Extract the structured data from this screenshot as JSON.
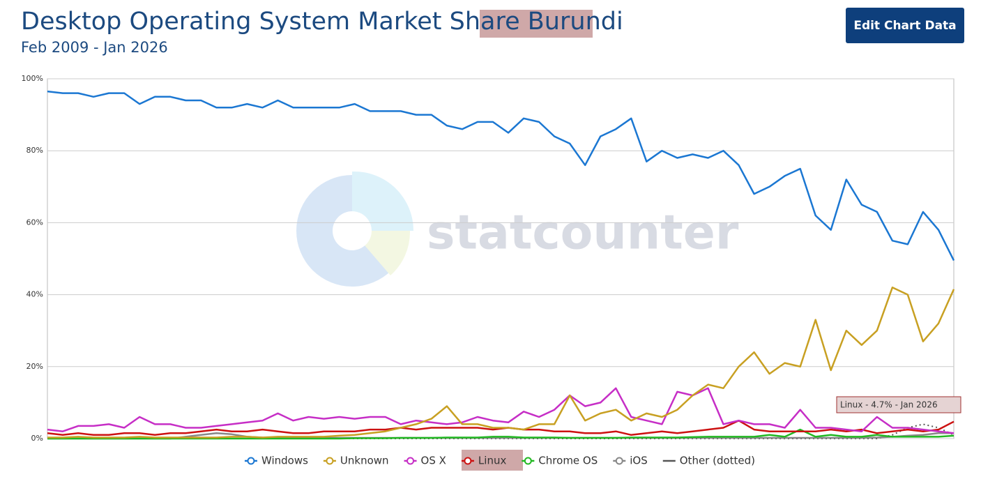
{
  "chart_data": {
    "type": "line",
    "title": "Desktop Operating System Market Share",
    "title_highlight": "Burundi",
    "subtitle": "Feb 2009 - Jan 2026",
    "button": "Edit Chart Data",
    "watermark": "statcounter",
    "tooltip": "Linux - 4.7% - Jan 2026",
    "grid": true,
    "legend": "bottom",
    "ylim": [
      0,
      100
    ],
    "yticks": [
      {
        "value": 0,
        "label": "0%"
      },
      {
        "value": 20,
        "label": "20%"
      },
      {
        "value": 40,
        "label": "40%"
      },
      {
        "value": 60,
        "label": "60%"
      },
      {
        "value": 80,
        "label": "80%"
      },
      {
        "value": 100,
        "label": "100%"
      }
    ],
    "categories": [
      null,
      null,
      null,
      null,
      null,
      null,
      null,
      null,
      null,
      null,
      null,
      null,
      null,
      null,
      null,
      null,
      null,
      null,
      null,
      null,
      null,
      null,
      null,
      null,
      null,
      null,
      null,
      null,
      null,
      null,
      null,
      null,
      null,
      null,
      null,
      null,
      null,
      null,
      null,
      null,
      null,
      null,
      null,
      null,
      null,
      null,
      null,
      null,
      null,
      null,
      null,
      null,
      null,
      null,
      null,
      null,
      null,
      null,
      null,
      null
    ],
    "series": [
      {
        "name": "Windows",
        "color": "#1b77d2",
        "dash": "solid",
        "values": [
          96.5,
          96,
          96,
          95,
          96,
          96,
          93,
          95,
          95,
          94,
          94,
          92,
          92,
          93,
          92,
          94,
          92,
          92,
          92,
          92,
          93,
          91,
          91,
          91,
          90,
          90,
          87,
          86,
          88,
          88,
          85,
          89,
          88,
          84,
          82,
          76,
          84,
          86,
          89,
          77,
          80,
          78,
          79,
          78,
          80,
          76,
          68,
          70,
          73,
          75,
          62,
          58,
          72,
          65,
          63,
          55,
          54,
          63,
          58,
          49.5
        ]
      },
      {
        "name": "Unknown",
        "color": "#c8a022",
        "dash": "solid",
        "values": [
          0.3,
          0.3,
          0.5,
          0.3,
          0.3,
          0.3,
          0.5,
          0.3,
          0.3,
          0.3,
          0.3,
          0.3,
          0.5,
          0.5,
          0.3,
          0.5,
          0.5,
          0.5,
          0.5,
          0.8,
          1,
          1.5,
          2,
          3,
          4,
          5.5,
          9,
          4,
          4,
          3,
          3,
          2.5,
          4,
          4,
          12,
          5,
          7,
          8,
          5,
          7,
          6,
          8,
          12,
          15,
          14,
          20,
          24,
          18,
          21,
          20,
          33,
          19,
          30,
          26,
          30,
          42,
          40,
          27,
          32,
          41.5
        ]
      },
      {
        "name": "OS X",
        "color": "#c62ec6",
        "dash": "solid",
        "values": [
          2.5,
          2,
          3.5,
          3.5,
          4,
          3,
          6,
          4,
          4,
          3,
          3,
          3.5,
          4,
          4.5,
          5,
          7,
          5,
          6,
          5.5,
          6,
          5.5,
          6,
          6,
          4,
          5,
          4.5,
          4,
          4.5,
          6,
          5,
          4.5,
          7.5,
          6,
          8,
          12,
          9,
          10,
          14,
          6,
          5,
          4,
          13,
          12,
          14,
          4,
          5,
          4,
          4,
          3,
          8,
          3,
          3,
          2.5,
          2,
          6,
          3,
          3,
          2.5,
          2,
          1.5
        ]
      },
      {
        "name": "Linux",
        "color": "#cc1111",
        "dash": "solid",
        "values": [
          1.5,
          1,
          1.5,
          1,
          1,
          1.5,
          1.5,
          1,
          1.5,
          1.5,
          2,
          2.5,
          2,
          2,
          2.5,
          2,
          1.5,
          1.5,
          2,
          2,
          2,
          2.5,
          2.5,
          3,
          2.5,
          3,
          3,
          3,
          3,
          2.5,
          3,
          2.5,
          2.5,
          2,
          2,
          1.5,
          1.5,
          2,
          1,
          1.5,
          2,
          1.5,
          2,
          2.5,
          3,
          5,
          2.5,
          2,
          2,
          2,
          2,
          2.5,
          2,
          2.5,
          1.5,
          2,
          2.5,
          2,
          2.5,
          4.7
        ]
      },
      {
        "name": "Chrome OS",
        "color": "#22b822",
        "dash": "solid",
        "values": [
          0,
          0,
          0,
          0,
          0,
          0,
          0,
          0,
          0,
          0,
          0,
          0,
          0,
          0,
          0,
          0,
          0,
          0,
          0,
          0,
          0.1,
          0.1,
          0.1,
          0.2,
          0.2,
          0.2,
          0.3,
          0.3,
          0.3,
          0.5,
          0.5,
          0.3,
          0.3,
          0.3,
          0.2,
          0.2,
          0.2,
          0.2,
          0.3,
          0.3,
          0.3,
          0.3,
          0.4,
          0.5,
          0.5,
          0.5,
          0.5,
          1,
          0.5,
          2.5,
          0.5,
          1,
          0.5,
          0.5,
          1,
          0.5,
          0.5,
          0.5,
          0.5,
          0.8
        ]
      },
      {
        "name": "iOS",
        "color": "#888888",
        "dash": "solid",
        "values": [
          0,
          0,
          0,
          0,
          0,
          0,
          0,
          0,
          0,
          0.5,
          1,
          1.5,
          1.2,
          0.5,
          0.3,
          0.2,
          0.2,
          0.2,
          0.2,
          0.2,
          0.2,
          0.2,
          0.2,
          0.2,
          0.2,
          0.2,
          0.2,
          0.2,
          0.2,
          0.2,
          0.2,
          0.2,
          0.2,
          0.2,
          0.2,
          0.2,
          0.2,
          0.2,
          0.2,
          0.2,
          0.2,
          0.2,
          0.2,
          0.2,
          0.2,
          0.2,
          0.2,
          0.2,
          0.2,
          0.2,
          0.2,
          0.2,
          0.2,
          0.2,
          0.3,
          0.5,
          0.8,
          1,
          1.5,
          1.5
        ]
      },
      {
        "name": "Other (dotted)",
        "color": "#555555",
        "dash": "dotted",
        "values": [
          0,
          0,
          0,
          0,
          0,
          0,
          0,
          0,
          0,
          0,
          0,
          0,
          0,
          0,
          0,
          0,
          0,
          0,
          0,
          0,
          0,
          0,
          0,
          0,
          0,
          0,
          0,
          0,
          0,
          0,
          0,
          0,
          0,
          0,
          0,
          0,
          0,
          0,
          0,
          0,
          0,
          0,
          0,
          0,
          0,
          0,
          0,
          0,
          0,
          0,
          0,
          0,
          0,
          0,
          0,
          1,
          3,
          4,
          3,
          1
        ]
      }
    ]
  }
}
